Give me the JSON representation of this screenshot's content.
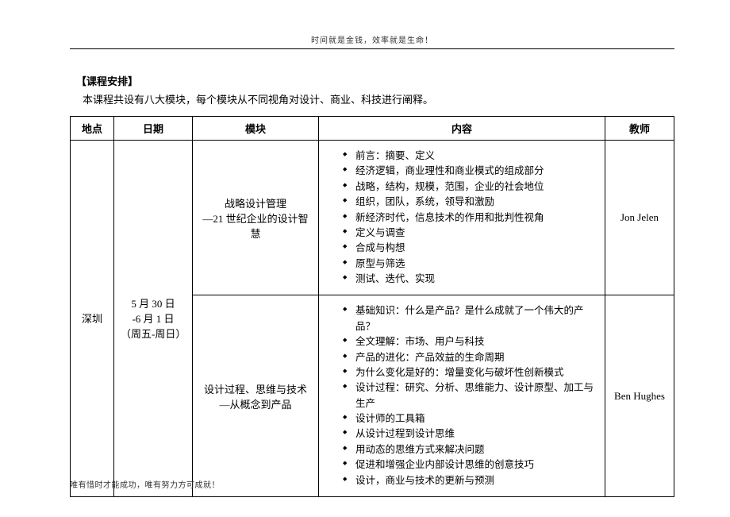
{
  "header_motto": "时间就是金钱，效率就是生命！",
  "footer_motto": "唯有惜时才能成功，唯有努力方可成就！",
  "section_title": "【课程安排】",
  "intro": "本课程共设有八大模块，每个模块从不同视角对设计、商业、科技进行阐释。",
  "columns": {
    "location": "地点",
    "date": "日期",
    "module": "模块",
    "content": "内容",
    "teacher": "教师"
  },
  "row": {
    "location": "深圳",
    "date_line1": "5 月 30 日",
    "date_line2": "-6 月 1 日",
    "date_line3": "（周五-周日）",
    "module1_line1": "战略设计管理",
    "module1_line2": "—21 世纪企业的设计智慧",
    "teacher1": "Jon Jelen",
    "bullets1": [
      "前言：摘要、定义",
      "经济逻辑，商业理性和商业模式的组成部分",
      "战略，结构，规模，范围，企业的社会地位",
      "组织，团队，系统，领导和激励",
      "新经济时代，信息技术的作用和批判性视角",
      "定义与调查",
      "合成与构想",
      "原型与筛选",
      "测试、迭代、实现"
    ],
    "module2_line1": "设计过程、思维与技术",
    "module2_line2": "—从概念到产品",
    "teacher2": "Ben Hughes",
    "bullets2": [
      "基础知识：什么是产品？是什么成就了一个伟大的产品？",
      "全文理解：市场、用户与科技",
      "产品的进化：产品效益的生命周期",
      "为什么变化是好的：增量变化与破坏性创新模式",
      "设计过程：研究、分析、思维能力、设计原型、加工与生产",
      "设计师的工具箱",
      "从设计过程到设计思维",
      "用动态的思维方式来解决问题",
      "促进和增强企业内部设计思维的创意技巧",
      "设计，商业与技术的更新与预测"
    ]
  }
}
